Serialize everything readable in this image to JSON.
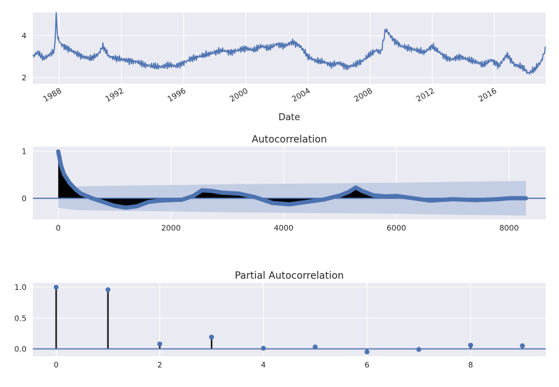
{
  "chart_data": [
    {
      "type": "line",
      "xlabel": "Date",
      "ylabel": "",
      "xlim": [
        1986.3,
        2019.3
      ],
      "ylim": [
        1.7,
        5.1
      ],
      "x_ticks": [
        1988,
        1992,
        1996,
        2000,
        2004,
        2008,
        2012,
        2016
      ],
      "x_tick_labels": [
        "1988",
        "1992",
        "1996",
        "2000",
        "2004",
        "2008",
        "2012",
        "2016"
      ],
      "y_ticks": [
        2,
        4
      ],
      "y_tick_labels": [
        "2",
        "4"
      ],
      "grid": true,
      "color": "#4c72b0",
      "series": [
        {
          "x": [
            1986.3,
            1986.6,
            1987.0,
            1987.4,
            1987.7,
            1987.8,
            1987.9,
            1988.1,
            1988.5,
            1989.0,
            1989.5,
            1990.0,
            1990.5,
            1990.8,
            1991.2,
            1991.8,
            1992.5,
            1993.0,
            1993.5,
            1994.0,
            1994.5,
            1995.0,
            1995.5,
            1996.0,
            1996.5,
            1997.0,
            1997.5,
            1998.0,
            1998.5,
            1999.0,
            1999.5,
            2000.0,
            2000.5,
            2001.0,
            2001.5,
            2002.0,
            2002.5,
            2003.0,
            2003.5,
            2004.0,
            2004.5,
            2005.0,
            2005.5,
            2006.0,
            2006.5,
            2007.0,
            2007.5,
            2008.0,
            2008.4,
            2008.7,
            2009.0,
            2009.5,
            2010.0,
            2010.5,
            2011.0,
            2011.5,
            2012.0,
            2012.3,
            2012.8,
            2013.2,
            2013.8,
            2014.3,
            2014.8,
            2015.3,
            2015.8,
            2016.3,
            2016.8,
            2017.3,
            2017.8,
            2018.2,
            2018.6,
            2019.0,
            2019.3
          ],
          "y": [
            3.0,
            3.2,
            2.9,
            3.1,
            3.3,
            5.0,
            3.9,
            3.6,
            3.4,
            3.2,
            3.0,
            2.9,
            3.1,
            3.5,
            3.0,
            2.9,
            2.8,
            2.75,
            2.6,
            2.55,
            2.5,
            2.6,
            2.55,
            2.7,
            2.9,
            3.0,
            3.1,
            3.2,
            3.3,
            3.2,
            3.3,
            3.4,
            3.3,
            3.5,
            3.4,
            3.6,
            3.5,
            3.7,
            3.5,
            3.0,
            2.8,
            2.75,
            2.6,
            2.7,
            2.5,
            2.6,
            2.8,
            3.1,
            3.3,
            3.2,
            4.3,
            3.8,
            3.5,
            3.4,
            3.3,
            3.2,
            3.5,
            3.3,
            3.0,
            2.85,
            3.0,
            2.85,
            2.75,
            2.6,
            2.85,
            2.55,
            3.1,
            2.6,
            2.5,
            2.2,
            2.4,
            2.75,
            3.4
          ]
        }
      ]
    },
    {
      "type": "acf",
      "title": "Autocorrelation",
      "xlim": [
        -450,
        8650
      ],
      "ylim": [
        -0.45,
        1.1
      ],
      "x_ticks": [
        0,
        2000,
        4000,
        6000,
        8000
      ],
      "x_tick_labels": [
        "0",
        "2000",
        "4000",
        "6000",
        "8000"
      ],
      "y_ticks": [
        0,
        1
      ],
      "y_tick_labels": [
        "0",
        "1"
      ],
      "grid": true,
      "color": "#4c72b0",
      "band_color": "#c1cbe2",
      "series": [
        {
          "x": [
            0,
            20,
            50,
            100,
            200,
            300,
            400,
            500,
            600,
            800,
            1000,
            1200,
            1400,
            1600,
            1800,
            2000,
            2200,
            2400,
            2550,
            2700,
            2900,
            3200,
            3500,
            3800,
            4100,
            4400,
            4700,
            5000,
            5150,
            5280,
            5400,
            5600,
            5800,
            6000,
            6300,
            6600,
            7000,
            7400,
            7800,
            8000,
            8300
          ],
          "y": [
            1.0,
            0.88,
            0.7,
            0.52,
            0.33,
            0.2,
            0.1,
            0.05,
            0.0,
            -0.08,
            -0.16,
            -0.2,
            -0.17,
            -0.08,
            -0.05,
            -0.04,
            -0.03,
            0.05,
            0.17,
            0.16,
            0.12,
            0.1,
            0.02,
            -0.1,
            -0.13,
            -0.08,
            -0.03,
            0.06,
            0.13,
            0.23,
            0.15,
            0.06,
            0.04,
            0.05,
            0.0,
            -0.05,
            -0.02,
            -0.04,
            -0.02,
            0.0,
            0.0
          ]
        }
      ],
      "confint_upper": {
        "x": [
          0,
          100,
          300,
          600,
          1200,
          2000,
          3000,
          4000,
          5000,
          6000,
          7000,
          8300
        ],
        "y": [
          0.2,
          0.22,
          0.25,
          0.26,
          0.27,
          0.28,
          0.3,
          0.31,
          0.32,
          0.33,
          0.35,
          0.37
        ]
      }
    },
    {
      "type": "pacf",
      "title": "Partial Autocorrelation",
      "xlim": [
        -0.45,
        9.45
      ],
      "ylim": [
        -0.12,
        1.07
      ],
      "x_ticks": [
        0,
        2,
        4,
        6,
        8
      ],
      "x_tick_labels": [
        "0",
        "2",
        "4",
        "6",
        "8"
      ],
      "y_ticks": [
        0.0,
        0.5,
        1.0
      ],
      "y_tick_labels": [
        "0.0",
        "0.5",
        "1.0"
      ],
      "grid": true,
      "color": "#4c72b0",
      "series": [
        {
          "x": [
            0,
            1,
            2,
            3,
            4,
            5,
            6,
            7,
            8,
            9
          ],
          "y": [
            1.0,
            0.96,
            0.08,
            0.19,
            0.01,
            0.03,
            -0.05,
            -0.01,
            0.06,
            0.05
          ]
        }
      ]
    }
  ]
}
